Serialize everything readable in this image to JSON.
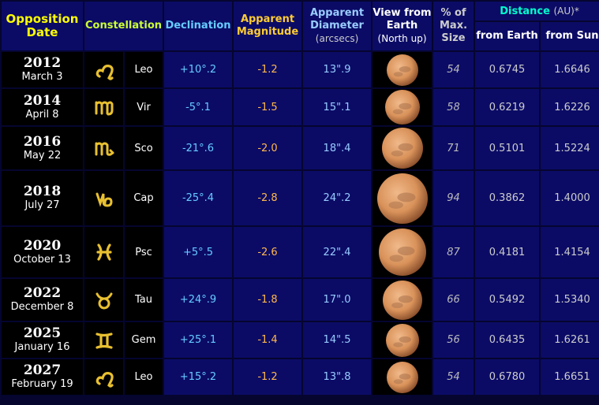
{
  "headers": {
    "date": "Opposition Date",
    "constellation": "Constellation",
    "declination": "Declination",
    "magnitude": "Apparent Magnitude",
    "diameter": "Apparent Diameter",
    "diameter_unit": "(arcsecs)",
    "view": "View from Earth",
    "view_note": "(North up)",
    "size": "% of Max. Size",
    "distance": "Distance",
    "distance_unit": "(AU)*",
    "from_earth": "from Earth",
    "from_sun": "from Sun"
  },
  "rows": [
    {
      "year": "2012",
      "date": "March 3",
      "symbol": "leo-icon",
      "abbr": "Leo",
      "declination": "+10°.2",
      "magnitude": "-1.2",
      "diameter": "13\".9",
      "pct_max": "54",
      "dist_earth": "0.6745",
      "dist_sun": "1.6646"
    },
    {
      "year": "2014",
      "date": "April 8",
      "symbol": "virgo-icon",
      "abbr": "Vir",
      "declination": "-5°.1",
      "magnitude": "-1.5",
      "diameter": "15\".1",
      "pct_max": "58",
      "dist_earth": "0.6219",
      "dist_sun": "1.6226"
    },
    {
      "year": "2016",
      "date": "May 22",
      "symbol": "scorpio-icon",
      "abbr": "Sco",
      "declination": "-21°.6",
      "magnitude": "-2.0",
      "diameter": "18\".4",
      "pct_max": "71",
      "dist_earth": "0.5101",
      "dist_sun": "1.5224"
    },
    {
      "year": "2018",
      "date": "July 27",
      "symbol": "capricorn-icon",
      "abbr": "Cap",
      "declination": "-25°.4",
      "magnitude": "-2.8",
      "diameter": "24\".2",
      "pct_max": "94",
      "dist_earth": "0.3862",
      "dist_sun": "1.4000"
    },
    {
      "year": "2020",
      "date": "October 13",
      "symbol": "pisces-icon",
      "abbr": "Psc",
      "declination": "+5°.5",
      "magnitude": "-2.6",
      "diameter": "22\".4",
      "pct_max": "87",
      "dist_earth": "0.4181",
      "dist_sun": "1.4154"
    },
    {
      "year": "2022",
      "date": "December 8",
      "symbol": "taurus-icon",
      "abbr": "Tau",
      "declination": "+24°.9",
      "magnitude": "-1.8",
      "diameter": "17\".0",
      "pct_max": "66",
      "dist_earth": "0.5492",
      "dist_sun": "1.5340"
    },
    {
      "year": "2025",
      "date": "January 16",
      "symbol": "gemini-icon",
      "abbr": "Gem",
      "declination": "+25°.1",
      "magnitude": "-1.4",
      "diameter": "14\".5",
      "pct_max": "56",
      "dist_earth": "0.6435",
      "dist_sun": "1.6261"
    },
    {
      "year": "2027",
      "date": "February 19",
      "symbol": "leo-icon",
      "abbr": "Leo",
      "declination": "+15°.2",
      "magnitude": "-1.2",
      "diameter": "13\".8",
      "pct_max": "54",
      "dist_earth": "0.6780",
      "dist_sun": "1.6651"
    }
  ],
  "colors": {
    "background": "#050530",
    "cell_blue": "#0b0b66",
    "cell_black": "#000000",
    "zodiac_gold": "#e8c030",
    "mars_orange": "#d9925a"
  }
}
